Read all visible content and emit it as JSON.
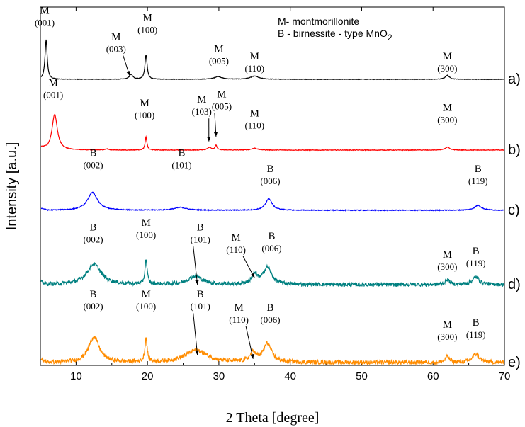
{
  "chart_data": {
    "type": "line",
    "xlabel": "2 Theta [degree]",
    "ylabel": "Intensity [a.u.]",
    "xlim": [
      5,
      70
    ],
    "xticks": [
      10,
      20,
      30,
      40,
      50,
      60,
      70
    ],
    "legend_lines": [
      {
        "prefix": "M- montmorillonite",
        "sub": ""
      },
      {
        "prefix": "B - birnessite - type MnO",
        "sub": "2"
      }
    ],
    "series": [
      {
        "name": "a)",
        "color": "#000000",
        "baseline": 0,
        "noise": 0.006,
        "peaks": [
          [
            5.8,
            1.0,
            0.18
          ],
          [
            17.7,
            0.12,
            0.3
          ],
          [
            19.8,
            0.62,
            0.18
          ],
          [
            29.9,
            0.07,
            0.6
          ],
          [
            35.0,
            0.08,
            0.7
          ],
          [
            62.0,
            0.1,
            0.35
          ]
        ]
      },
      {
        "name": "b)",
        "color": "#ff0000",
        "baseline": 1,
        "noise": 0.008,
        "peaks": [
          [
            7.0,
            0.95,
            0.45
          ],
          [
            14.3,
            0.03,
            0.3
          ],
          [
            19.8,
            0.35,
            0.15
          ],
          [
            28.7,
            0.07,
            0.35
          ],
          [
            29.6,
            0.12,
            0.18
          ],
          [
            35.0,
            0.05,
            0.5
          ],
          [
            62.0,
            0.08,
            0.35
          ]
        ]
      },
      {
        "name": "c)",
        "color": "#0000ff",
        "baseline": 2,
        "noise": 0.012,
        "peaks": [
          [
            12.3,
            0.5,
            0.85
          ],
          [
            24.6,
            0.08,
            1.0
          ],
          [
            37.0,
            0.33,
            0.55
          ],
          [
            66.3,
            0.14,
            0.6
          ]
        ]
      },
      {
        "name": "d)",
        "color": "#008080",
        "baseline": 3,
        "noise": 0.05,
        "peaks": [
          [
            12.5,
            0.55,
            1.2
          ],
          [
            19.8,
            0.65,
            0.18
          ],
          [
            26.7,
            0.22,
            1.2
          ],
          [
            35.0,
            0.25,
            0.5
          ],
          [
            36.8,
            0.45,
            0.7
          ],
          [
            62.0,
            0.14,
            0.35
          ],
          [
            66.0,
            0.2,
            0.6
          ]
        ]
      },
      {
        "name": "e)",
        "color": "#ff8c00",
        "baseline": 4,
        "noise": 0.05,
        "peaks": [
          [
            12.5,
            0.62,
            0.9
          ],
          [
            19.8,
            0.58,
            0.18
          ],
          [
            26.8,
            0.3,
            1.8
          ],
          [
            34.8,
            0.22,
            0.5
          ],
          [
            36.8,
            0.45,
            0.7
          ],
          [
            62.0,
            0.14,
            0.35
          ],
          [
            66.0,
            0.2,
            0.6
          ]
        ]
      }
    ],
    "annotations": [
      {
        "series": 0,
        "x": 5.6,
        "letter": "M",
        "hkl": "(001)",
        "labelY": 0.08
      },
      {
        "series": 0,
        "x": 15.6,
        "letter": "M",
        "hkl": "(003)",
        "labelY": 0.45,
        "arrowTo": [
          17.5,
          0.95
        ]
      },
      {
        "series": 0,
        "x": 20.0,
        "letter": "M",
        "hkl": "(100)",
        "labelY": 0.18
      },
      {
        "series": 0,
        "x": 30.0,
        "letter": "M",
        "hkl": "(005)",
        "labelY": 0.62
      },
      {
        "series": 0,
        "x": 35.0,
        "letter": "M",
        "hkl": "(110)",
        "labelY": 0.72
      },
      {
        "series": 0,
        "x": 62.0,
        "letter": "M",
        "hkl": "(300)",
        "labelY": 0.72
      },
      {
        "series": 1,
        "x": 6.8,
        "letter": "M",
        "hkl": "(001)",
        "labelY": 0.05
      },
      {
        "series": 1,
        "x": 19.6,
        "letter": "M",
        "hkl": "(100)",
        "labelY": 0.35
      },
      {
        "series": 1,
        "x": 27.6,
        "letter": "M",
        "hkl": "(103)",
        "labelY": 0.3,
        "arrowTo": [
          28.6,
          0.87
        ]
      },
      {
        "series": 1,
        "x": 30.4,
        "letter": "M",
        "hkl": "(005)",
        "labelY": 0.22,
        "arrowTo": [
          29.6,
          0.8
        ]
      },
      {
        "series": 1,
        "x": 35.0,
        "letter": "M",
        "hkl": "(110)",
        "labelY": 0.5
      },
      {
        "series": 1,
        "x": 62.0,
        "letter": "M",
        "hkl": "(300)",
        "labelY": 0.42
      },
      {
        "series": 2,
        "x": 12.4,
        "letter": "B",
        "hkl": "(002)",
        "labelY": 0.15
      },
      {
        "series": 2,
        "x": 24.8,
        "letter": "B",
        "hkl": "(101)",
        "labelY": 0.15
      },
      {
        "series": 2,
        "x": 37.2,
        "letter": "B",
        "hkl": "(006)",
        "labelY": 0.4
      },
      {
        "series": 2,
        "x": 66.3,
        "letter": "B",
        "hkl": "(119)",
        "labelY": 0.4
      },
      {
        "series": 3,
        "x": 12.4,
        "letter": "B",
        "hkl": "(002)",
        "labelY": 0.2
      },
      {
        "series": 3,
        "x": 19.8,
        "letter": "M",
        "hkl": "(100)",
        "labelY": 0.13
      },
      {
        "series": 3,
        "x": 27.4,
        "letter": "B",
        "hkl": "(101)",
        "labelY": 0.2,
        "arrowTo": [
          27.0,
          1.0
        ]
      },
      {
        "series": 3,
        "x": 32.4,
        "letter": "M",
        "hkl": "(110)",
        "labelY": 0.35,
        "arrowTo": [
          35.0,
          0.9
        ]
      },
      {
        "series": 3,
        "x": 37.4,
        "letter": "B",
        "hkl": "(006)",
        "labelY": 0.33
      },
      {
        "series": 3,
        "x": 62.0,
        "letter": "M",
        "hkl": "(300)",
        "labelY": 0.6
      },
      {
        "series": 3,
        "x": 66.0,
        "letter": "B",
        "hkl": "(119)",
        "labelY": 0.55
      },
      {
        "series": 4,
        "x": 12.4,
        "letter": "B",
        "hkl": "(002)",
        "labelY": 0.12
      },
      {
        "series": 4,
        "x": 19.8,
        "letter": "M",
        "hkl": "(100)",
        "labelY": 0.12
      },
      {
        "series": 4,
        "x": 27.4,
        "letter": "B",
        "hkl": "(101)",
        "labelY": 0.12,
        "arrowTo": [
          27.0,
          0.9
        ]
      },
      {
        "series": 4,
        "x": 32.8,
        "letter": "M",
        "hkl": "(110)",
        "labelY": 0.3,
        "arrowTo": [
          34.8,
          0.95
        ]
      },
      {
        "series": 4,
        "x": 37.2,
        "letter": "B",
        "hkl": "(006)",
        "labelY": 0.3
      },
      {
        "series": 4,
        "x": 62.0,
        "letter": "M",
        "hkl": "(300)",
        "labelY": 0.53
      },
      {
        "series": 4,
        "x": 66.0,
        "letter": "B",
        "hkl": "(119)",
        "labelY": 0.5
      }
    ]
  }
}
